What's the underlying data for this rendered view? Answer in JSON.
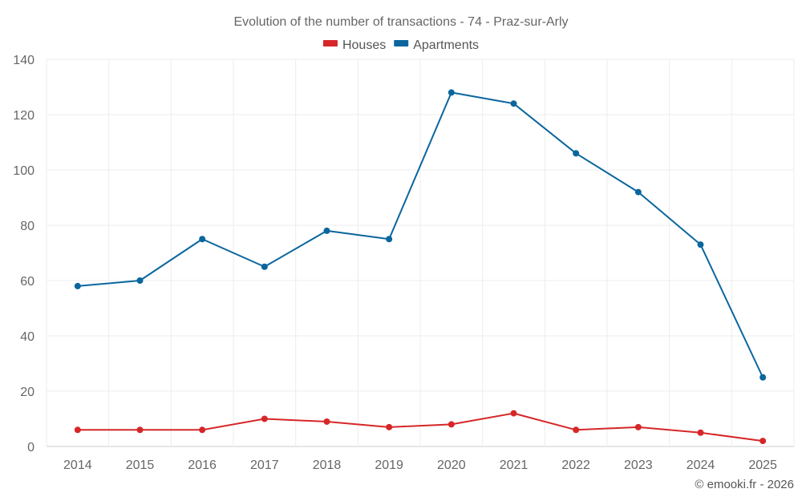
{
  "chart_data": {
    "type": "line",
    "title": "Evolution of the number of transactions - 74 - Praz-sur-Arly",
    "categories": [
      "2014",
      "2015",
      "2016",
      "2017",
      "2018",
      "2019",
      "2020",
      "2021",
      "2022",
      "2023",
      "2024",
      "2025"
    ],
    "series": [
      {
        "name": "Houses",
        "color": "#d62728",
        "values": [
          6,
          6,
          6,
          10,
          9,
          7,
          8,
          12,
          6,
          7,
          5,
          2
        ]
      },
      {
        "name": "Apartments",
        "color": "#0a669d",
        "values": [
          58,
          60,
          75,
          65,
          78,
          75,
          128,
          124,
          106,
          92,
          73,
          25
        ]
      }
    ],
    "ylim": [
      0,
      140
    ],
    "yticks": [
      0,
      20,
      40,
      60,
      80,
      100,
      120,
      140
    ],
    "grid": true,
    "legend": "top-center",
    "xlabel": "",
    "ylabel": ""
  },
  "credit": "© emooki.fr - 2026"
}
